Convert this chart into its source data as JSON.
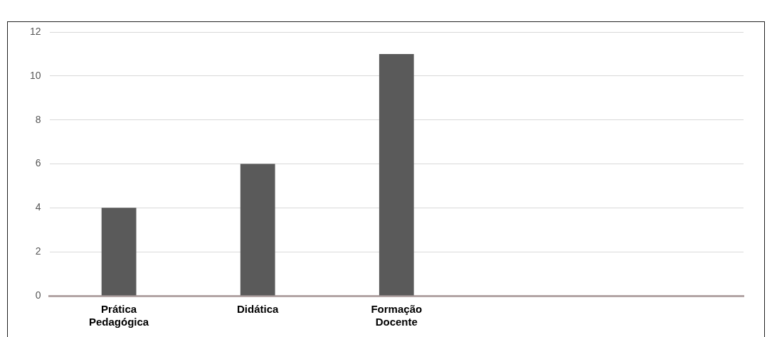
{
  "chart_data": {
    "type": "bar",
    "categories": [
      [
        "Prática",
        "Pedagógica"
      ],
      "Didática",
      [
        "Formação",
        "Docente"
      ],
      null,
      null
    ],
    "values": [
      4,
      6,
      11,
      null,
      null
    ],
    "color": "#5a5a5a",
    "ylim": [
      0,
      12
    ],
    "yticks": [
      0,
      2,
      4,
      6,
      8,
      10,
      12
    ],
    "grid": "y",
    "legend": false
  }
}
